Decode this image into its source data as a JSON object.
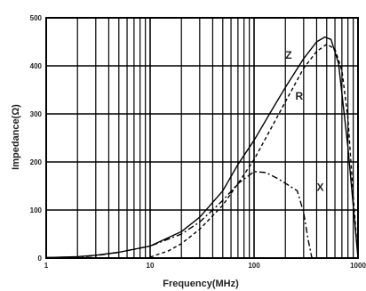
{
  "chart_data": {
    "type": "line",
    "xlabel": "Frequency(MHz)",
    "ylabel": "Impedance(Ω)",
    "xscale": "log",
    "xlim": [
      1,
      1000
    ],
    "ylim": [
      0,
      500
    ],
    "grid": true,
    "x_tick_labels": [
      {
        "value": 1,
        "label": "1"
      },
      {
        "value": 10,
        "label": "10"
      },
      {
        "value": 100,
        "label": "100"
      },
      {
        "value": 1000,
        "label": "1000"
      }
    ],
    "y_tick_labels": [
      {
        "value": 0,
        "label": "0"
      },
      {
        "value": 100,
        "label": "100"
      },
      {
        "value": 200,
        "label": "200"
      },
      {
        "value": 300,
        "label": "300"
      },
      {
        "value": 400,
        "label": "400"
      },
      {
        "value": 500,
        "label": "500"
      }
    ],
    "series": [
      {
        "name": "Z",
        "style": "solid",
        "x": [
          1,
          2,
          3,
          5,
          10,
          20,
          30,
          50,
          70,
          100,
          150,
          200,
          300,
          400,
          480,
          550,
          650,
          800,
          1000
        ],
        "y": [
          1,
          3,
          6,
          12,
          25,
          55,
          85,
          140,
          195,
          245,
          310,
          355,
          415,
          450,
          460,
          455,
          405,
          230,
          0
        ],
        "label_at": {
          "x": 200,
          "y": 415
        }
      },
      {
        "name": "R",
        "style": "dashed",
        "x": [
          10,
          15,
          20,
          30,
          50,
          70,
          100,
          150,
          200,
          300,
          400,
          500,
          600,
          700,
          800,
          900,
          1000
        ],
        "y": [
          2,
          15,
          30,
          60,
          110,
          155,
          205,
          275,
          325,
          395,
          430,
          445,
          435,
          390,
          290,
          130,
          0
        ],
        "label_at": {
          "x": 250,
          "y": 330
        }
      },
      {
        "name": "X",
        "style": "dashdot",
        "x": [
          1,
          2,
          3,
          5,
          10,
          20,
          30,
          50,
          70,
          100,
          130,
          170,
          220,
          260,
          300,
          330,
          360
        ],
        "y": [
          1,
          2,
          5,
          12,
          25,
          50,
          75,
          120,
          155,
          180,
          178,
          165,
          150,
          140,
          95,
          40,
          0
        ],
        "label_at": {
          "x": 400,
          "y": 140
        }
      }
    ]
  }
}
